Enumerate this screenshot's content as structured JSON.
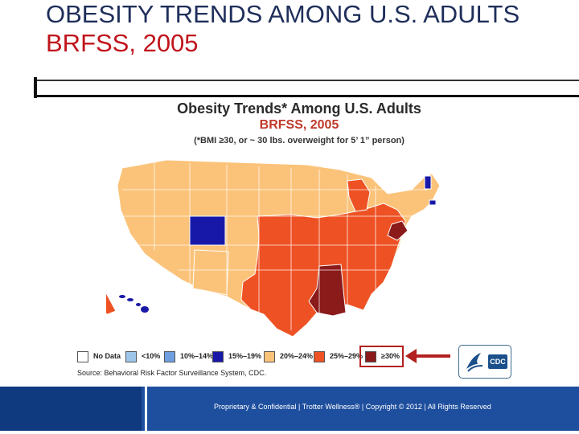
{
  "slide": {
    "title_line1": "OBESITY TRENDS AMONG U.S. ADULTS",
    "title_line2": "BRFSS, 2005"
  },
  "map": {
    "title": "Obesity Trends* Among U.S. Adults",
    "subtitle": "BRFSS, 2005",
    "note": "(*BMI ≥30, or ~ 30 lbs. overweight for 5’ 1” person)",
    "legend": [
      {
        "label": "No Data",
        "color": "#ffffff"
      },
      {
        "label": "<10%",
        "color": "#9ec5ea"
      },
      {
        "label": "10%–14%",
        "color": "#6f9fe0"
      },
      {
        "label": "15%–19%",
        "color": "#1818a8"
      },
      {
        "label": "20%–24%",
        "color": "#fbc37a"
      },
      {
        "label": "25%–29%",
        "color": "#ee5224"
      },
      {
        "label": "≥30%",
        "color": "#8b1a1a"
      }
    ],
    "highlighted_category": "≥30%",
    "source": "Source: Behavioral Risk Factor Surveillance System, CDC.",
    "logo": "CDC",
    "colors": {
      "15_19": "#1818a8",
      "20_24": "#fbc37a",
      "25_29": "#ee5224",
      "30_plus": "#8b1a1a"
    }
  },
  "footer": {
    "text": "Proprietary & Confidential | Trotter Wellness® | Copyright © 2012 | All Rights Reserved"
  }
}
